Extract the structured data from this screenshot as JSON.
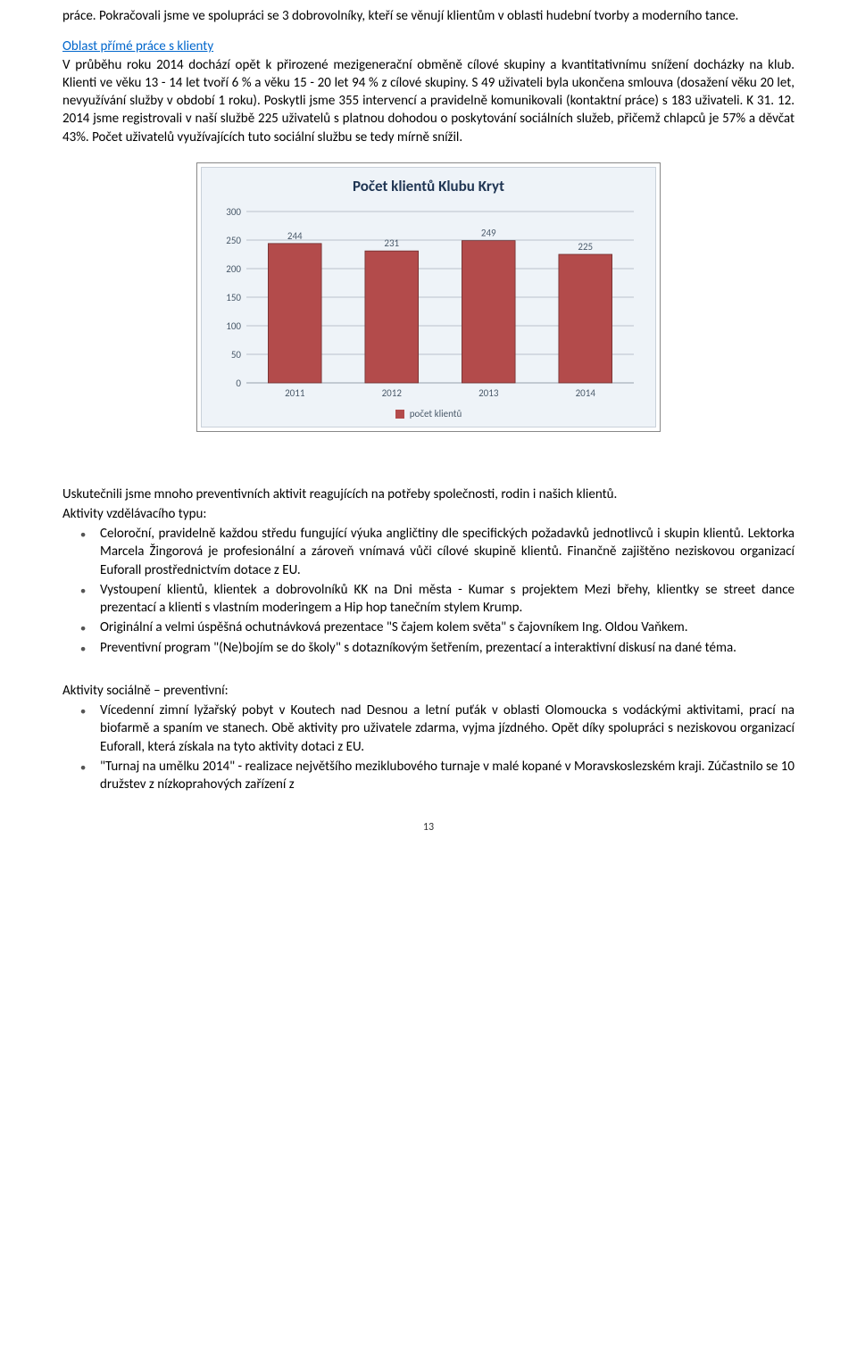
{
  "body": {
    "p1": "práce. Pokračovali jsme ve spolupráci se 3 dobrovolníky, kteří se věnují klientům v oblasti hudební tvorby a moderního tance.",
    "heading2": "Oblast přímé práce s klienty",
    "p2_rest": "V průběhu roku 2014 dochází opět k přirozené mezigenerační obměně cílové skupiny a kvantitativnímu snížení docházky na klub. Klienti ve věku 13 - 14 let tvoří 6 % a věku 15 - 20 let 94 % z cílové skupiny. S 49 uživateli byla ukončena smlouva (dosažení věku 20 let, nevyužívání služby v období 1 roku). Poskytli jsme 355 intervencí a pravidelně komunikovali (kontaktní práce) s 183 uživateli.  K 31. 12. 2014 jsme registrovali v naší službě 225 uživatelů s platnou dohodou o poskytování sociálních služeb, přičemž chlapců je 57% a děvčat 43%. Počet uživatelů využívajících tuto sociální službu se tedy mírně snížil.",
    "p3": "Uskutečnili jsme mnoho preventivních aktivit reagujících na potřeby společnosti, rodin i našich klientů.",
    "h_edu": "Aktivity vzdělávacího typu:",
    "edu_items": {
      "0": "Celoroční, pravidelně každou středu fungující výuka angličtiny dle specifických požadavků jednotlivců i skupin klientů. Lektorka Marcela Žingorová je profesionální a zároveň vnímavá vůči cílové skupině klientů. Finančně zajištěno neziskovou organizací Euforall prostřednictvím dotace z EU.",
      "1": "Vystoupení klientů, klientek a dobrovolníků KK na Dni města - Kumar s projektem Mezi břehy, klientky se street dance prezentací a klienti s vlastním moderingem a Hip hop tanečním stylem Krump.",
      "2": "Originální a velmi úspěšná ochutnávková prezentace \"S čajem kolem světa\" s čajovníkem Ing. Oldou Vaňkem.",
      "3": "Preventivní program \"(Ne)bojím se do školy\" s dotazníkovým šetřením, prezentací a interaktivní diskusí na dané téma."
    },
    "h_soc": "Aktivity sociálně – preventivní:",
    "soc_items": {
      "0": "Vícedenní zimní lyžařský pobyt v Koutech nad Desnou a letní puťák v oblasti Olomoucka s vodáckými aktivitami, prací na biofarmě  a spaním ve stanech. Obě aktivity pro uživatele zdarma, vyjma jízdného. Opět díky spolupráci s neziskovou organizací Euforall, která získala na tyto aktivity dotaci z EU.",
      "1": "\"Turnaj na umělku 2014\" - realizace největšího meziklubového turnaje v malé kopané v Moravskoslezském kraji. Zúčastnilo se 10 družstev z nízkoprahových zařízení z"
    },
    "page_num": "13"
  },
  "chart": {
    "title": "Počet klientů Klubu Kryt",
    "type": "bar",
    "categories": [
      "2011",
      "2012",
      "2013",
      "2014"
    ],
    "values": [
      244,
      231,
      249,
      225
    ],
    "bar_color": "#b34b4b",
    "bar_border": "#6e2e2e",
    "background_color": "#eef3f8",
    "plot_bg": "#eef3f8",
    "grid_color": "#b9c2cc",
    "axis_color": "#97a2ad",
    "ylim": [
      0,
      300
    ],
    "ytick_step": 50,
    "label_fontsize": 11,
    "title_fontsize": 17,
    "bar_width": 0.55,
    "legend_label": "počet klientů",
    "text_color": "#4a5a6a"
  }
}
